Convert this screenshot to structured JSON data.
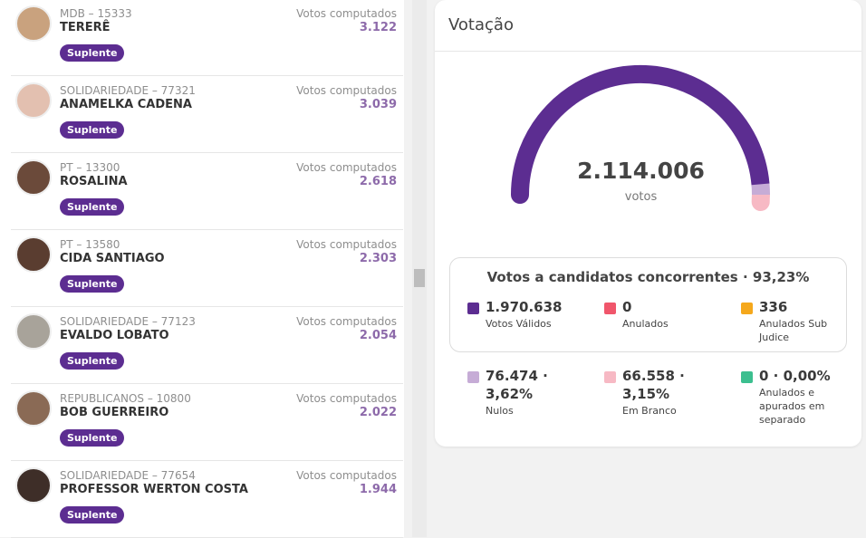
{
  "candidates": [
    {
      "party": "MDB – 15333",
      "name": "TERERÊ",
      "badge": "Suplente",
      "votes_label": "Votos computados",
      "votes": "3.122"
    },
    {
      "party": "SOLIDARIEDADE – 77321",
      "name": "ANAMELKA CADENA",
      "badge": "Suplente",
      "votes_label": "Votos computados",
      "votes": "3.039"
    },
    {
      "party": "PT – 13300",
      "name": "ROSALINA",
      "badge": "Suplente",
      "votes_label": "Votos computados",
      "votes": "2.618"
    },
    {
      "party": "PT – 13580",
      "name": "CIDA SANTIAGO",
      "badge": "Suplente",
      "votes_label": "Votos computados",
      "votes": "2.303"
    },
    {
      "party": "SOLIDARIEDADE – 77123",
      "name": "EVALDO LOBATO",
      "badge": "Suplente",
      "votes_label": "Votos computados",
      "votes": "2.054"
    },
    {
      "party": "REPUBLICANOS – 10800",
      "name": "BOB GUERREIRO",
      "badge": "Suplente",
      "votes_label": "Votos computados",
      "votes": "2.022"
    },
    {
      "party": "SOLIDARIEDADE – 77654",
      "name": "PROFESSOR WERTON COSTA",
      "badge": "Suplente",
      "votes_label": "Votos computados",
      "votes": "1.944"
    }
  ],
  "panel": {
    "title": "Votação",
    "total": "2.114.006",
    "total_label": "votos",
    "summary": {
      "title": "Votos a candidatos concorrentes · 93,23%",
      "items": [
        {
          "value": "1.970.638",
          "label": "Votos Válidos",
          "color": "#5c2d91"
        },
        {
          "value": "0",
          "label": "Anulados",
          "color": "#f0566b"
        },
        {
          "value": "336",
          "label": "Anulados Sub Judice",
          "color": "#f5a81c"
        }
      ]
    },
    "others": [
      {
        "value": "76.474 · 3,62%",
        "label": "Nulos",
        "color": "#c6acd6"
      },
      {
        "value": "66.558 · 3,15%",
        "label": "Em Branco",
        "color": "#f7b9c4"
      },
      {
        "value": "0 · 0,00%",
        "label": "Anulados e apurados em separado",
        "color": "#3cbf8f"
      }
    ]
  }
}
